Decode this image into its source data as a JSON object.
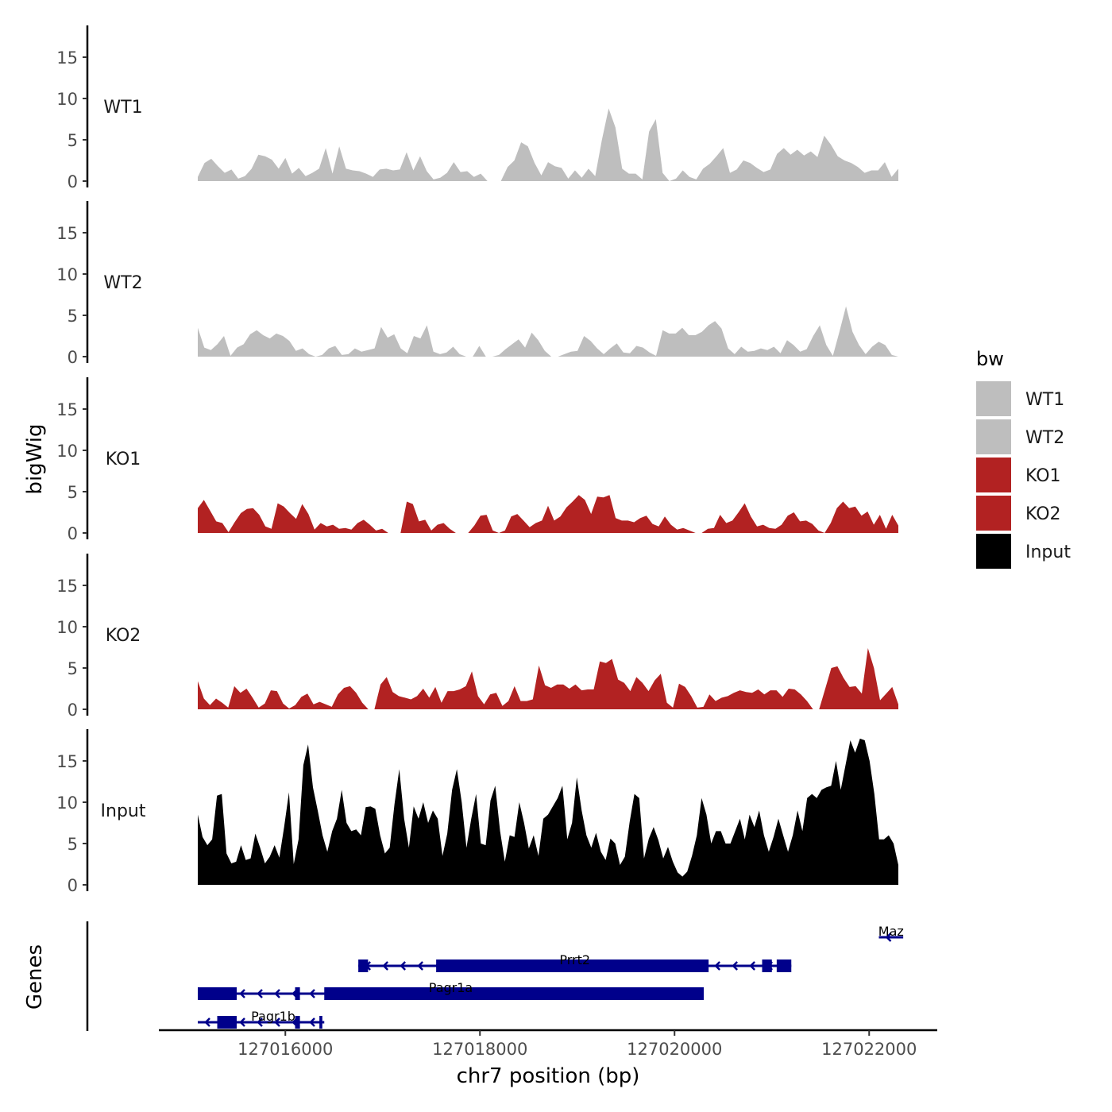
{
  "chart_data": {
    "type": "area",
    "ylabel": "bigWig",
    "xlabel": "chr7 position (bp)",
    "genes_label": "Genes",
    "xlim": [
      127014700,
      127022700
    ],
    "x_ticks": [
      127016000,
      127018000,
      127020000,
      127022000
    ],
    "x_tick_labels": [
      "127016000",
      "127018000",
      "127020000",
      "127022000"
    ],
    "ylim": [
      0,
      19
    ],
    "y_ticks": [
      0,
      5,
      10,
      15
    ],
    "y_tick_labels": [
      "0",
      "5",
      "10",
      "15"
    ],
    "data_x_start": 127015100,
    "data_x_end": 127022300,
    "legend": {
      "title": "bw",
      "position": "right",
      "items": [
        {
          "label": "WT1",
          "color": "#bebebe"
        },
        {
          "label": "WT2",
          "color": "#bebebe"
        },
        {
          "label": "KO1",
          "color": "#b22222"
        },
        {
          "label": "KO2",
          "color": "#b22222"
        },
        {
          "label": "Input",
          "color": "#000000"
        }
      ]
    },
    "tracks": [
      {
        "name": "WT1",
        "color": "#bebebe",
        "values": [
          0.5,
          2.2,
          2.7,
          1.8,
          1.0,
          1.4,
          0.3,
          0.6,
          1.5,
          3.2,
          3.0,
          2.6,
          1.5,
          2.8,
          0.9,
          1.6,
          0.6,
          1.0,
          1.5,
          4.0,
          0.9,
          4.2,
          1.5,
          1.3,
          1.2,
          0.9,
          0.5,
          1.4,
          1.5,
          1.3,
          1.4,
          3.5,
          1.3,
          3.0,
          1.2,
          0.2,
          0.4,
          1.0,
          2.3,
          1.1,
          1.2,
          0.5,
          0.9,
          0.0,
          0.0,
          0.0,
          1.7,
          2.5,
          4.7,
          4.2,
          2.2,
          0.7,
          2.3,
          1.8,
          1.6,
          0.3,
          1.3,
          0.4,
          1.5,
          0.6,
          5.0,
          8.8,
          6.5,
          1.5,
          0.9,
          0.9,
          0.2,
          6.0,
          7.5,
          1.0,
          0.0,
          0.3,
          1.3,
          0.5,
          0.2,
          1.5,
          2.1,
          3.0,
          4.0,
          1.0,
          1.4,
          2.5,
          2.2,
          1.6,
          1.1,
          1.4,
          3.3,
          4.0,
          3.2,
          3.8,
          3.1,
          3.6,
          2.9,
          5.5,
          4.4,
          3.0,
          2.5,
          2.2,
          1.7,
          1.0,
          1.3,
          1.3,
          2.3,
          0.5,
          1.5
        ]
      },
      {
        "name": "WT2",
        "color": "#bebebe",
        "values": [
          3.5,
          1.1,
          0.8,
          1.5,
          2.5,
          0.1,
          1.1,
          1.5,
          2.7,
          3.2,
          2.6,
          2.2,
          2.8,
          2.5,
          1.9,
          0.7,
          1.0,
          0.3,
          0.0,
          0.2,
          1.0,
          1.3,
          0.2,
          0.3,
          1.0,
          0.6,
          0.8,
          1.0,
          3.6,
          2.3,
          2.7,
          1.0,
          0.4,
          2.5,
          2.2,
          3.8,
          0.6,
          0.3,
          0.5,
          1.2,
          0.3,
          0.0,
          0.0,
          1.3,
          0.0,
          0.0,
          0.2,
          0.9,
          1.5,
          2.1,
          1.1,
          2.9,
          2.0,
          0.7,
          0.0,
          0.0,
          0.3,
          0.6,
          0.7,
          2.5,
          1.9,
          1.0,
          0.3,
          1.0,
          1.6,
          0.5,
          0.4,
          1.3,
          1.1,
          0.5,
          0.1,
          3.2,
          2.8,
          2.8,
          3.5,
          2.6,
          2.6,
          3.0,
          3.8,
          4.3,
          3.4,
          1.0,
          0.3,
          1.2,
          0.6,
          0.7,
          1.0,
          0.8,
          1.2,
          0.4,
          2.0,
          1.4,
          0.6,
          0.9,
          2.5,
          3.8,
          1.4,
          0.1,
          3.0,
          6.1,
          3.0,
          1.4,
          0.3,
          1.2,
          1.8,
          1.4,
          0.2,
          0.0
        ]
      },
      {
        "name": "KO1",
        "color": "#b22222",
        "values": [
          3.0,
          4.0,
          2.7,
          1.4,
          1.2,
          0.1,
          1.3,
          2.4,
          2.9,
          3.0,
          2.2,
          0.8,
          0.5,
          3.6,
          3.2,
          2.4,
          1.7,
          3.5,
          2.3,
          0.4,
          1.2,
          0.8,
          1.0,
          0.5,
          0.6,
          0.4,
          1.2,
          1.6,
          1.0,
          0.3,
          0.5,
          0.0,
          0.0,
          0.0,
          3.8,
          3.5,
          1.4,
          1.6,
          0.3,
          1.0,
          1.2,
          0.5,
          0.0,
          0.0,
          0.0,
          0.9,
          2.1,
          2.2,
          0.3,
          0.0,
          0.3,
          2.0,
          2.3,
          1.5,
          0.7,
          1.2,
          1.5,
          3.3,
          1.5,
          2.0,
          3.1,
          3.8,
          4.6,
          4.0,
          2.3,
          4.4,
          4.3,
          4.6,
          1.8,
          1.5,
          1.5,
          1.3,
          1.8,
          2.1,
          1.1,
          0.8,
          2.0,
          1.0,
          0.4,
          0.6,
          0.3,
          0.0,
          0.0,
          0.5,
          0.6,
          2.2,
          1.2,
          1.5,
          2.5,
          3.6,
          2.0,
          0.8,
          1.0,
          0.6,
          0.5,
          1.0,
          2.1,
          2.5,
          1.4,
          1.5,
          1.1,
          0.3,
          0.0,
          1.2,
          3.0,
          3.8,
          3.0,
          3.2,
          2.1,
          2.6,
          1.0,
          2.2,
          0.5,
          2.2,
          0.9
        ]
      },
      {
        "name": "KO2",
        "color": "#b22222",
        "values": [
          3.4,
          1.3,
          0.5,
          1.3,
          0.8,
          0.2,
          2.8,
          2.0,
          2.5,
          1.4,
          0.2,
          0.7,
          2.3,
          2.2,
          0.7,
          0.1,
          0.5,
          1.5,
          1.9,
          0.6,
          0.9,
          0.6,
          0.3,
          1.8,
          2.6,
          2.8,
          2.0,
          0.8,
          0.0,
          0.0,
          3.0,
          3.9,
          2.1,
          1.6,
          1.4,
          1.2,
          1.6,
          2.5,
          1.4,
          2.7,
          0.8,
          2.2,
          2.2,
          2.4,
          2.8,
          4.6,
          1.6,
          0.6,
          1.8,
          2.0,
          0.4,
          1.0,
          2.8,
          1.0,
          1.0,
          1.2,
          5.3,
          2.9,
          2.6,
          3.0,
          3.0,
          2.5,
          3.0,
          2.3,
          2.4,
          2.4,
          5.8,
          5.6,
          6.1,
          3.6,
          3.2,
          2.2,
          3.9,
          3.2,
          2.2,
          3.5,
          4.3,
          0.8,
          0.2,
          3.1,
          2.7,
          1.6,
          0.2,
          0.3,
          1.8,
          1.0,
          1.4,
          1.6,
          2.0,
          2.3,
          2.1,
          2.0,
          2.4,
          1.8,
          2.3,
          2.3,
          1.5,
          2.5,
          2.4,
          1.8,
          1.0,
          0.0,
          0.0,
          2.5,
          5.0,
          5.2,
          3.8,
          2.7,
          2.8,
          1.9,
          7.4,
          5.0,
          1.1,
          1.9,
          2.7,
          0.6
        ]
      },
      {
        "name": "Input",
        "color": "#000000",
        "values": [
          8.5,
          5.8,
          4.8,
          5.5,
          10.8,
          11.0,
          3.8,
          2.6,
          2.8,
          4.8,
          3.0,
          3.2,
          6.2,
          4.5,
          2.6,
          3.4,
          4.8,
          3.3,
          7.0,
          11.2,
          2.5,
          5.5,
          14.5,
          17.0,
          11.8,
          9.0,
          6.0,
          4.0,
          6.5,
          8.0,
          11.5,
          7.5,
          6.5,
          6.7,
          6.0,
          9.4,
          9.5,
          9.2,
          6.0,
          3.8,
          4.5,
          9.8,
          14.0,
          8.0,
          4.5,
          9.5,
          8.0,
          10.0,
          7.5,
          9.0,
          8.0,
          3.5,
          6.2,
          11.5,
          14.0,
          10.0,
          4.5,
          8.0,
          11.0,
          5.0,
          4.8,
          10.2,
          12.0,
          6.5,
          2.8,
          6.0,
          5.8,
          10.0,
          7.5,
          4.4,
          6.0,
          3.5,
          8.0,
          8.5,
          9.5,
          10.5,
          12.0,
          5.5,
          7.5,
          13.0,
          9.0,
          6.0,
          4.5,
          6.3,
          4.0,
          3.0,
          5.6,
          5.0,
          2.4,
          3.4,
          7.6,
          11.0,
          10.5,
          3.2,
          5.6,
          7.0,
          5.4,
          3.2,
          4.6,
          2.8,
          1.5,
          1.0,
          1.6,
          3.5,
          6.0,
          10.5,
          8.5,
          5.0,
          6.5,
          6.5,
          5.0,
          5.0,
          6.5,
          8.0,
          5.5,
          8.5,
          7.0,
          9.0,
          6.0,
          4.0,
          5.8,
          8.0,
          6.0,
          4.0,
          6.0,
          9.0,
          6.5,
          10.5,
          11.0,
          10.5,
          11.5,
          11.8,
          12.0,
          15.0,
          11.5,
          14.5,
          17.5,
          16.0,
          17.7,
          17.5,
          15.0,
          11.0,
          5.5,
          5.5,
          6.0,
          5.0,
          2.4
        ]
      }
    ],
    "genes": [
      {
        "name": "Maz",
        "start": 127022100,
        "end": 127022350,
        "strand": "-",
        "row": 0,
        "exons": []
      },
      {
        "name": "Prrt2",
        "start": 127016750,
        "end": 127021200,
        "strand": "-",
        "row": 1,
        "exons": [
          [
            127016750,
            127016850
          ],
          [
            127017550,
            127020350
          ],
          [
            127020900,
            127021000
          ],
          [
            127021050,
            127021200
          ]
        ]
      },
      {
        "name": "Pagr1a",
        "start": 127015100,
        "end": 127020300,
        "strand": "-",
        "row": 2,
        "exons": [
          [
            127015100,
            127015500
          ],
          [
            127016100,
            127016150
          ],
          [
            127016400,
            127020300
          ]
        ]
      },
      {
        "name": "Pagr1b",
        "start": 127015100,
        "end": 127016400,
        "strand": "-",
        "row": 3,
        "exons": [
          [
            127015300,
            127015500
          ],
          [
            127016100,
            127016150
          ],
          [
            127016350,
            127016380
          ]
        ]
      }
    ]
  }
}
